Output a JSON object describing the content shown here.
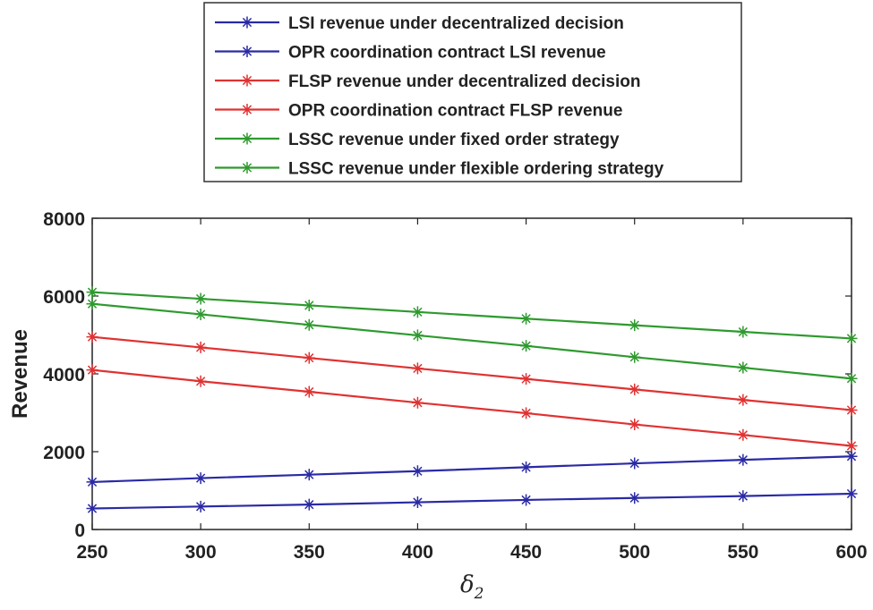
{
  "chart_data": {
    "type": "line",
    "title": "",
    "xlabel": "δ",
    "xlabel_subscript": "2",
    "ylabel": "Revenue",
    "xlim": [
      250,
      600
    ],
    "ylim": [
      0,
      8000
    ],
    "x": [
      250,
      300,
      350,
      400,
      450,
      500,
      550,
      600
    ],
    "xticks": [
      "250",
      "300",
      "350",
      "400",
      "450",
      "500",
      "550",
      "600"
    ],
    "yticks": [
      "0",
      "2000",
      "4000",
      "6000",
      "8000"
    ],
    "ytick_values": [
      0,
      2000,
      4000,
      6000,
      8000
    ],
    "legend_position": "top-center (outside, above axes)",
    "series": [
      {
        "name": "LSI revenue under decentralized decision",
        "color": "#2a2aa5",
        "values": [
          540,
          590,
          640,
          700,
          760,
          810,
          860,
          920
        ]
      },
      {
        "name": "OPR coordination contract LSI revenue",
        "color": "#2a2aa5",
        "values": [
          1220,
          1320,
          1410,
          1500,
          1600,
          1700,
          1790,
          1880
        ]
      },
      {
        "name": "FLSP revenue  under decentralized decision",
        "color": "#e03232",
        "values": [
          4100,
          3810,
          3540,
          3260,
          2990,
          2700,
          2430,
          2150
        ]
      },
      {
        "name": "OPR coordination contract FLSP revenue",
        "color": "#e03232",
        "values": [
          4950,
          4680,
          4410,
          4140,
          3870,
          3600,
          3330,
          3070
        ]
      },
      {
        "name": "LSSC revenue under fixed order strategy",
        "color": "#2e9a2e",
        "values": [
          5800,
          5530,
          5260,
          4990,
          4720,
          4430,
          4160,
          3880
        ]
      },
      {
        "name": "LSSC revenue under flexible ordering strategy",
        "color": "#2e9a2e",
        "values": [
          6100,
          5930,
          5760,
          5590,
          5420,
          5250,
          5080,
          4910
        ]
      }
    ]
  }
}
